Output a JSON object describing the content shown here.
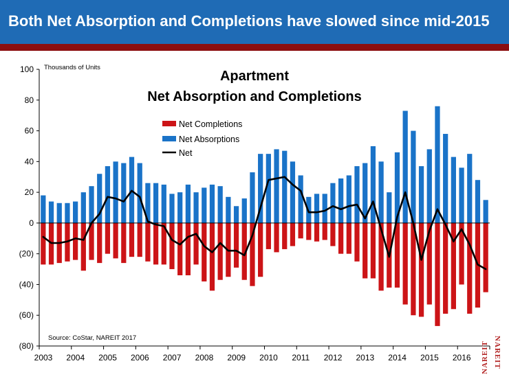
{
  "header": {
    "title": "Both Net Absorption and Completions have slowed since mid-2015"
  },
  "colors": {
    "header_bg": "#1f6bb5",
    "stripe": "#8b0e10",
    "completions": "#cc1417",
    "absorptions": "#1a73c8",
    "net": "#000000"
  },
  "logo": {
    "text": "NAREIT",
    "color": "#b22222"
  },
  "chart_data": {
    "type": "bar",
    "title_line1": "Apartment",
    "title_line2": "Net Absorption and Completions",
    "unit_label": "Thousands of Units",
    "source": "Source: CoStar, NAREIT 2017",
    "ylim": [
      -80,
      100
    ],
    "yticks": [
      100,
      80,
      60,
      40,
      20,
      0,
      -20,
      -40,
      -60,
      -80
    ],
    "ytick_labels": [
      "100",
      "80",
      "60",
      "40",
      "20",
      "0",
      "(20)",
      "(40)",
      "(60)",
      "(80)"
    ],
    "x_labels": [
      "2003",
      "2004",
      "2005",
      "2006",
      "2007",
      "2008",
      "2009",
      "2010",
      "2011",
      "2012",
      "2013",
      "2014",
      "2015",
      "2016"
    ],
    "quarters_per_year": 4,
    "legend_position": "upper-middle",
    "grid": false,
    "series": [
      {
        "name": "Net Completions",
        "type": "bar",
        "color": "#cc1417",
        "values": [
          -27,
          -27,
          -26,
          -25,
          -24,
          -31,
          -24,
          -26,
          -20,
          -23,
          -26,
          -22,
          -22,
          -25,
          -27,
          -27,
          -30,
          -34,
          -34,
          -27,
          -38,
          -44,
          -37,
          -35,
          -29,
          -37,
          -41,
          -35,
          -17,
          -19,
          -17,
          -15,
          -10,
          -11,
          -12,
          -11,
          -15,
          -20,
          -20,
          -25,
          -36,
          -36,
          -44,
          -42,
          -42,
          -53,
          -60,
          -61,
          -53,
          -67,
          -59,
          -56,
          -40,
          -59,
          -55,
          -45
        ]
      },
      {
        "name": "Net Absorptions",
        "type": "bar",
        "color": "#1a73c8",
        "values": [
          18,
          14,
          13,
          13,
          14,
          20,
          24,
          32,
          37,
          40,
          39,
          43,
          39,
          26,
          26,
          25,
          19,
          20,
          25,
          20,
          23,
          25,
          24,
          17,
          11,
          16,
          33,
          45,
          45,
          48,
          47,
          40,
          31,
          17,
          19,
          19,
          26,
          29,
          31,
          37,
          39,
          50,
          40,
          20,
          46,
          73,
          60,
          37,
          48,
          76,
          58,
          43,
          36,
          45,
          28,
          15
        ]
      },
      {
        "name": "Net",
        "type": "line",
        "color": "#000000",
        "values": [
          -9,
          -13,
          -13,
          -12,
          -10,
          -11,
          0,
          6,
          17,
          16,
          14,
          21,
          17,
          1,
          -1,
          -2,
          -11,
          -14,
          -9,
          -7,
          -15,
          -19,
          -13,
          -18,
          -18,
          -21,
          -8,
          10,
          28,
          29,
          30,
          25,
          21,
          7,
          7,
          8,
          11,
          9,
          11,
          12,
          3,
          14,
          -4,
          -22,
          4,
          20,
          0,
          -24,
          -5,
          9,
          -1,
          -12,
          -4,
          -14,
          -27,
          -30
        ]
      }
    ]
  }
}
